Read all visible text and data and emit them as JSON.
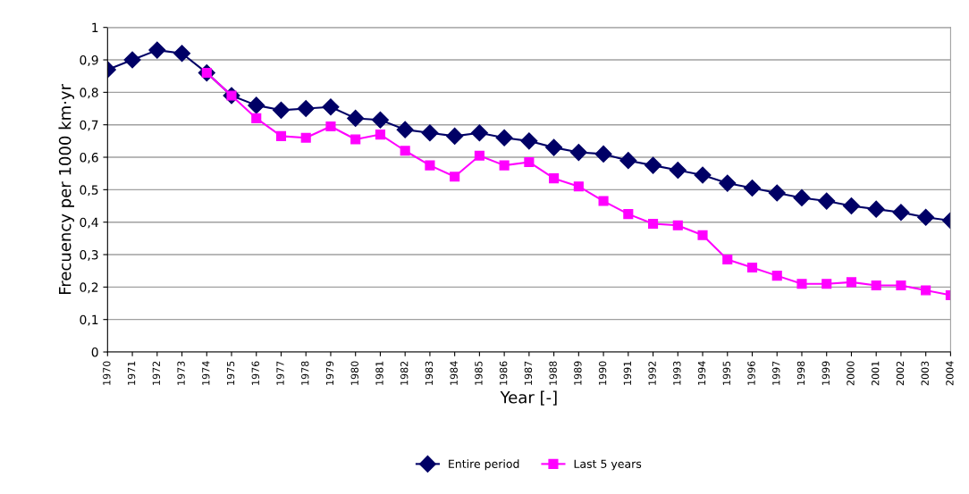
{
  "chart_data": {
    "type": "line",
    "xlabel": "Year [-]",
    "ylabel": "Frecuency per 1000 km·yr",
    "categories": [
      "1970",
      "1971",
      "1972",
      "1973",
      "1974",
      "1975",
      "1976",
      "1977",
      "1978",
      "1979",
      "1980",
      "1981",
      "1982",
      "1983",
      "1984",
      "1985",
      "1986",
      "1987",
      "1988",
      "1989",
      "1990",
      "1991",
      "1992",
      "1993",
      "1994",
      "1995",
      "1996",
      "1997",
      "1998",
      "1999",
      "2000",
      "2001",
      "2002",
      "2003",
      "2004"
    ],
    "series": [
      {
        "name": "Entire period",
        "color": "#000066",
        "marker": "diamond",
        "values": [
          0.87,
          0.9,
          0.93,
          0.92,
          0.86,
          0.79,
          0.76,
          0.745,
          0.75,
          0.755,
          0.72,
          0.715,
          0.685,
          0.675,
          0.665,
          0.675,
          0.66,
          0.65,
          0.63,
          0.615,
          0.61,
          0.59,
          0.575,
          0.56,
          0.545,
          0.52,
          0.505,
          0.49,
          0.475,
          0.465,
          0.45,
          0.44,
          0.43,
          0.415,
          0.405
        ]
      },
      {
        "name": "Last 5 years",
        "color": "#ff00ff",
        "marker": "square",
        "values": [
          null,
          null,
          null,
          null,
          0.86,
          0.79,
          0.72,
          0.665,
          0.66,
          0.695,
          0.655,
          0.67,
          0.62,
          0.575,
          0.54,
          0.605,
          0.575,
          0.585,
          0.535,
          0.51,
          0.465,
          0.425,
          0.395,
          0.39,
          0.36,
          0.285,
          0.26,
          0.235,
          0.21,
          0.21,
          0.215,
          0.205,
          0.205,
          0.19,
          0.175
        ]
      }
    ],
    "ylim": [
      0,
      1
    ],
    "yticks": [
      0,
      {
        "value": 0.1,
        "label": "0,1"
      },
      {
        "value": 0.2,
        "label": "0,2"
      },
      {
        "value": 0.3,
        "label": "0,3"
      },
      {
        "value": 0.4,
        "label": "0,4"
      },
      {
        "value": 0.5,
        "label": "0,5"
      },
      {
        "value": 0.6,
        "label": "0,6"
      },
      {
        "value": 0.7,
        "label": "0,7"
      },
      {
        "value": 0.8,
        "label": "0,8"
      },
      {
        "value": 0.9,
        "label": "0,9"
      },
      1
    ],
    "grid": "y",
    "legend": "bottom",
    "line_style": "solid"
  }
}
